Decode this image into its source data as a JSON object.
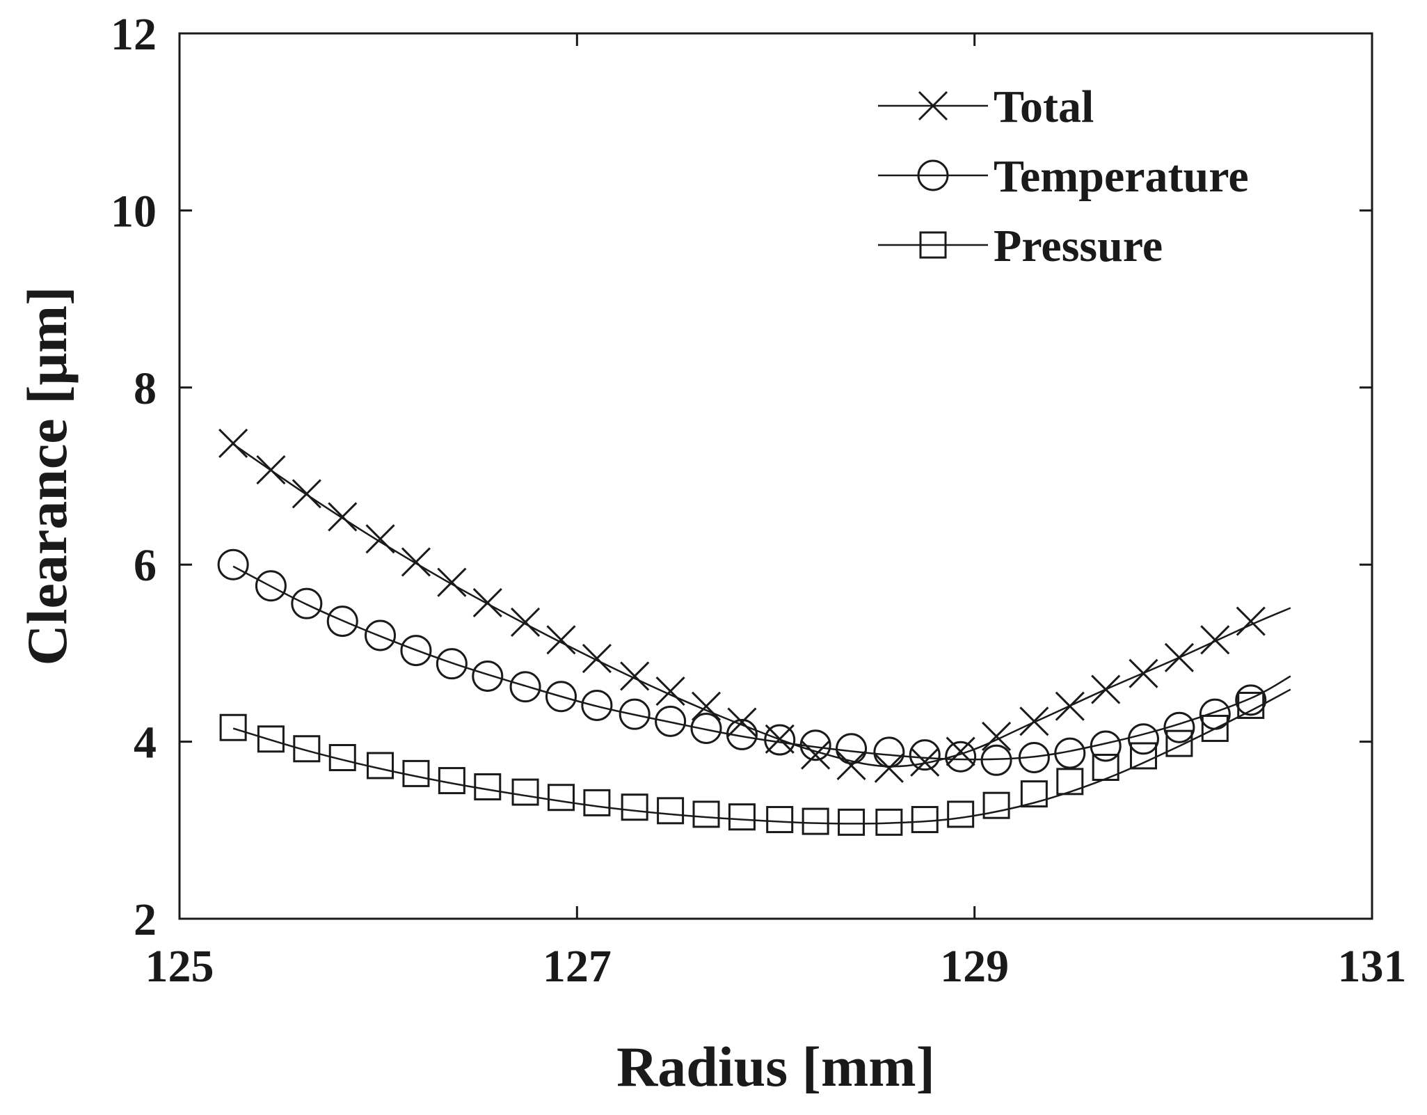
{
  "chart_data": {
    "type": "line",
    "xlabel": "Radius [mm]",
    "ylabel": "Clearance [μm]",
    "xlim": [
      125,
      131
    ],
    "ylim": [
      2,
      12
    ],
    "xticks": [
      125,
      127,
      129,
      131
    ],
    "yticks": [
      2,
      4,
      6,
      8,
      10,
      12
    ],
    "xtick_labels": [
      "125",
      "127",
      "129",
      "131"
    ],
    "ytick_labels": [
      "2",
      "4",
      "6",
      "8",
      "10",
      "12"
    ],
    "grid": false,
    "legend_position": "top-right",
    "series": [
      {
        "name": "Total",
        "marker": "x",
        "x": [
          125.27,
          125.46,
          125.64,
          125.82,
          126.01,
          126.19,
          126.37,
          126.55,
          126.74,
          126.92,
          127.1,
          127.29,
          127.47,
          127.65,
          127.83,
          128.02,
          128.2,
          128.38,
          128.57,
          128.75,
          128.93,
          129.11,
          129.3,
          129.48,
          129.66,
          129.85,
          130.03,
          130.21,
          130.39
        ],
        "values": [
          7.37,
          7.07,
          6.8,
          6.54,
          6.29,
          6.03,
          5.8,
          5.57,
          5.35,
          5.15,
          4.94,
          4.74,
          4.57,
          4.4,
          4.22,
          4.03,
          3.85,
          3.73,
          3.7,
          3.77,
          3.89,
          4.06,
          4.23,
          4.4,
          4.59,
          4.77,
          4.95,
          5.15,
          5.36
        ],
        "fit_line": {
          "x": [
            125.27,
            125.64,
            126.0,
            126.37,
            126.74,
            127.1,
            127.47,
            127.83,
            128.2,
            128.57,
            128.93,
            129.3,
            129.66,
            130.03,
            130.39,
            130.59
          ],
          "values": [
            7.36,
            6.79,
            6.27,
            5.78,
            5.33,
            4.92,
            4.53,
            4.19,
            3.89,
            3.72,
            3.86,
            4.22,
            4.59,
            4.95,
            5.32,
            5.51
          ]
        }
      },
      {
        "name": "Temperature",
        "marker": "o",
        "x": [
          125.27,
          125.46,
          125.64,
          125.82,
          126.01,
          126.19,
          126.37,
          126.55,
          126.74,
          126.92,
          127.1,
          127.29,
          127.47,
          127.65,
          127.83,
          128.02,
          128.2,
          128.38,
          128.57,
          128.75,
          128.93,
          129.11,
          129.3,
          129.48,
          129.66,
          129.85,
          130.03,
          130.21,
          130.39
        ],
        "values": [
          6.0,
          5.76,
          5.56,
          5.36,
          5.2,
          5.03,
          4.88,
          4.74,
          4.62,
          4.51,
          4.41,
          4.31,
          4.23,
          4.15,
          4.08,
          4.02,
          3.96,
          3.92,
          3.88,
          3.85,
          3.83,
          3.79,
          3.82,
          3.87,
          3.95,
          4.03,
          4.16,
          4.31,
          4.47
        ],
        "fit_line": {
          "x": [
            125.27,
            125.64,
            126.0,
            126.37,
            126.74,
            127.1,
            127.47,
            127.83,
            128.2,
            128.57,
            128.93,
            129.3,
            129.66,
            130.03,
            130.39,
            130.59
          ],
          "values": [
            5.98,
            5.55,
            5.2,
            4.89,
            4.63,
            4.4,
            4.22,
            4.06,
            3.94,
            3.85,
            3.8,
            3.83,
            3.98,
            4.2,
            4.49,
            4.74
          ]
        }
      },
      {
        "name": "Pressure",
        "marker": "s",
        "x": [
          125.27,
          125.46,
          125.64,
          125.82,
          126.01,
          126.19,
          126.37,
          126.55,
          126.74,
          126.92,
          127.1,
          127.29,
          127.47,
          127.65,
          127.83,
          128.02,
          128.2,
          128.38,
          128.57,
          128.75,
          128.93,
          129.11,
          129.3,
          129.48,
          129.66,
          129.85,
          130.03,
          130.21,
          130.39
        ],
        "values": [
          4.16,
          4.03,
          3.92,
          3.82,
          3.73,
          3.64,
          3.56,
          3.49,
          3.43,
          3.37,
          3.31,
          3.26,
          3.22,
          3.18,
          3.15,
          3.12,
          3.1,
          3.09,
          3.09,
          3.12,
          3.18,
          3.28,
          3.41,
          3.55,
          3.71,
          3.84,
          3.98,
          4.15,
          4.41
        ],
        "fit_line": {
          "x": [
            125.27,
            125.64,
            126.0,
            126.37,
            126.74,
            127.1,
            127.47,
            127.83,
            128.2,
            128.57,
            128.93,
            129.3,
            129.66,
            130.03,
            130.39,
            130.59
          ],
          "values": [
            4.15,
            3.9,
            3.7,
            3.53,
            3.39,
            3.27,
            3.18,
            3.12,
            3.08,
            3.08,
            3.14,
            3.31,
            3.58,
            3.95,
            4.35,
            4.59
          ]
        }
      }
    ]
  }
}
